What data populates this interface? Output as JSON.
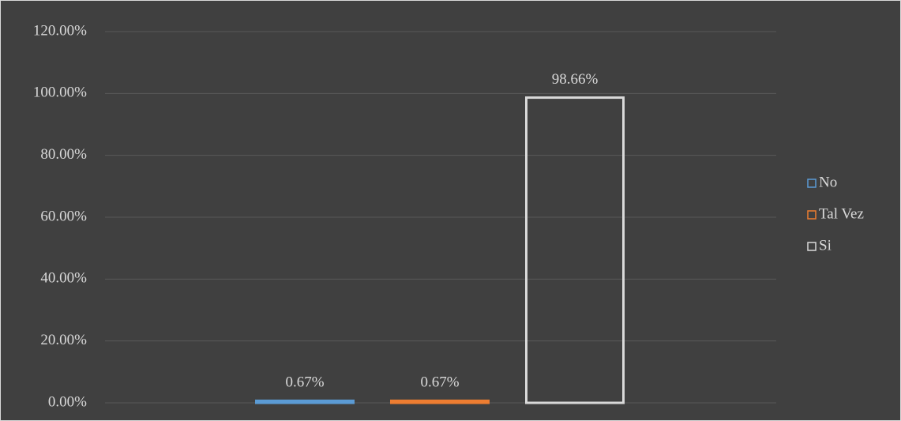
{
  "chart_data": {
    "type": "bar",
    "categories": [
      null
    ],
    "series": [
      {
        "name": "No",
        "color": "#5b9bd5",
        "values": [
          0.67
        ],
        "value_labels": [
          "0.67%"
        ]
      },
      {
        "name": "Tal Vez",
        "color": "#ed7d31",
        "values": [
          0.67
        ],
        "value_labels": [
          "0.67%"
        ]
      },
      {
        "name": "Si",
        "color": "#d9d9d9",
        "values": [
          98.66
        ],
        "value_labels": [
          "98.66%"
        ]
      }
    ],
    "ylim": [
      0,
      120
    ],
    "yticks": [
      {
        "value": 0,
        "label": "0.00%"
      },
      {
        "value": 20,
        "label": "20.00%"
      },
      {
        "value": 40,
        "label": "40.00%"
      },
      {
        "value": 60,
        "label": "60.00%"
      },
      {
        "value": 80,
        "label": "80.00%"
      },
      {
        "value": 100,
        "label": "100.00%"
      },
      {
        "value": 120,
        "label": "120.00%"
      }
    ],
    "grid": true,
    "legend": "right"
  }
}
